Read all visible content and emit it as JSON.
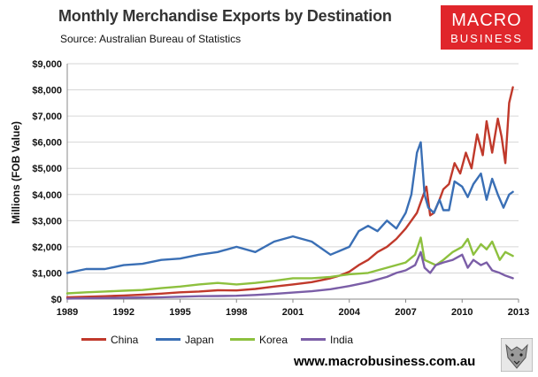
{
  "title": "Monthly Merchandise Exports by Destination",
  "source": "Source:  Australian Bureau of Statistics",
  "logo": {
    "line1": "MACRO",
    "line2": "BUSINESS",
    "color": "#e0262b"
  },
  "footer_url": "www.macrobusiness.com.au",
  "chart_data": {
    "type": "line",
    "title": "Monthly Merchandise Exports by Destination",
    "xlabel": "",
    "ylabel": "Millions (FOB Value)",
    "xlim": [
      1989,
      2013
    ],
    "ylim": [
      0,
      9000
    ],
    "x_ticks": [
      "1989",
      "1992",
      "1995",
      "1998",
      "2001",
      "2004",
      "2007",
      "2010",
      "2013"
    ],
    "y_ticks": [
      "$0",
      "$1,000",
      "$2,000",
      "$3,000",
      "$4,000",
      "$5,000",
      "$6,000",
      "$7,000",
      "$8,000",
      "$9,000"
    ],
    "grid": "horizontal",
    "legend_position": "bottom",
    "series": [
      {
        "name": "China",
        "color": "#c0392b",
        "x": [
          1989,
          1990,
          1991,
          1992,
          1993,
          1994,
          1995,
          1996,
          1997,
          1998,
          1999,
          2000,
          2001,
          2002,
          2003,
          2003.5,
          2004,
          2004.5,
          2005,
          2005.5,
          2006,
          2006.5,
          2007,
          2007.3,
          2007.6,
          2007.9,
          2008.1,
          2008.3,
          2008.5,
          2008.8,
          2009,
          2009.3,
          2009.6,
          2009.9,
          2010.2,
          2010.5,
          2010.8,
          2011.1,
          2011.3,
          2011.6,
          2011.9,
          2012.1,
          2012.3,
          2012.5,
          2012.7
        ],
        "y": [
          70,
          90,
          110,
          140,
          170,
          210,
          260,
          290,
          340,
          330,
          390,
          480,
          560,
          650,
          800,
          900,
          1050,
          1300,
          1500,
          1800,
          2000,
          2300,
          2700,
          3000,
          3300,
          3900,
          4300,
          3200,
          3300,
          3800,
          4200,
          4400,
          5200,
          4800,
          5600,
          5000,
          6300,
          5500,
          6800,
          5600,
          6900,
          6200,
          5200,
          7500,
          8100
        ]
      },
      {
        "name": "Japan",
        "color": "#3a6fb5",
        "x": [
          1989,
          1990,
          1991,
          1992,
          1993,
          1994,
          1995,
          1996,
          1997,
          1998,
          1999,
          2000,
          2001,
          2002,
          2003,
          2004,
          2004.5,
          2005,
          2005.5,
          2006,
          2006.5,
          2007,
          2007.3,
          2007.6,
          2007.8,
          2008,
          2008.2,
          2008.5,
          2008.8,
          2009,
          2009.3,
          2009.6,
          2010,
          2010.3,
          2010.6,
          2011,
          2011.3,
          2011.6,
          2011.9,
          2012.2,
          2012.5,
          2012.7
        ],
        "y": [
          1000,
          1150,
          1150,
          1300,
          1350,
          1500,
          1550,
          1700,
          1800,
          2000,
          1800,
          2200,
          2400,
          2200,
          1700,
          2000,
          2600,
          2800,
          2600,
          3000,
          2700,
          3300,
          4000,
          5600,
          6000,
          4000,
          3500,
          3300,
          3800,
          3400,
          3400,
          4500,
          4300,
          3900,
          4400,
          4800,
          3800,
          4600,
          4000,
          3500,
          4000,
          4100
        ]
      },
      {
        "name": "Korea",
        "color": "#8dc03e",
        "x": [
          1989,
          1990,
          1991,
          1992,
          1993,
          1994,
          1995,
          1996,
          1997,
          1998,
          1999,
          2000,
          2001,
          2002,
          2003,
          2004,
          2005,
          2006,
          2007,
          2007.5,
          2007.8,
          2008,
          2008.3,
          2008.6,
          2009,
          2009.5,
          2010,
          2010.3,
          2010.6,
          2011,
          2011.3,
          2011.6,
          2012,
          2012.3,
          2012.7
        ],
        "y": [
          220,
          260,
          290,
          320,
          350,
          420,
          480,
          560,
          620,
          560,
          620,
          700,
          800,
          800,
          850,
          950,
          1000,
          1200,
          1400,
          1700,
          2350,
          1500,
          1400,
          1300,
          1500,
          1800,
          2000,
          2300,
          1700,
          2100,
          1900,
          2200,
          1500,
          1800,
          1650
        ]
      },
      {
        "name": "India",
        "color": "#7b5ea7",
        "x": [
          1989,
          1990,
          1991,
          1992,
          1993,
          1994,
          1995,
          1996,
          1997,
          1998,
          1999,
          2000,
          2001,
          2002,
          2003,
          2004,
          2005,
          2006,
          2006.5,
          2007,
          2007.5,
          2007.8,
          2008,
          2008.3,
          2008.6,
          2009,
          2009.5,
          2010,
          2010.3,
          2010.6,
          2011,
          2011.3,
          2011.6,
          2012,
          2012.3,
          2012.7
        ],
        "y": [
          20,
          30,
          40,
          50,
          60,
          70,
          90,
          110,
          120,
          130,
          160,
          200,
          250,
          300,
          380,
          500,
          650,
          850,
          1000,
          1100,
          1300,
          1800,
          1200,
          1000,
          1300,
          1400,
          1500,
          1700,
          1200,
          1500,
          1300,
          1400,
          1100,
          1000,
          900,
          800
        ]
      }
    ]
  }
}
